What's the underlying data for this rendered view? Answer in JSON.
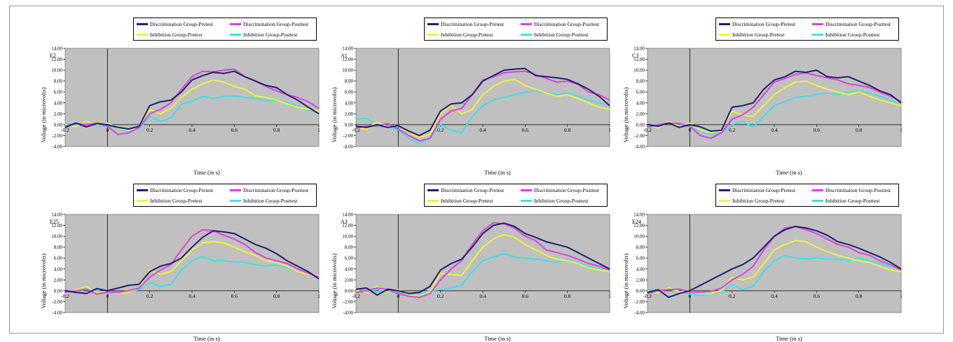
{
  "legend": [
    {
      "name": "Discrimination Group-Pretest",
      "color": "#1f1f6e"
    },
    {
      "name": "Discrimination Group-Posttest",
      "color": "#e040e0"
    },
    {
      "name": "Inhibition Group-Pretest",
      "color": "#f0f040"
    },
    {
      "name": "Inhibition Group-Posttest",
      "color": "#40e0e8"
    }
  ],
  "plot_bg": "#c0c0c0",
  "chart_data": [
    {
      "type": "line",
      "title": "E2",
      "xlabel": "Time (in s)",
      "ylabel": "Voltage (in microvolts)",
      "xlim": [
        -0.2,
        1
      ],
      "ylim": [
        -4,
        14
      ],
      "xticks": [
        "-0.2",
        "0",
        "0.2",
        "0.4",
        "0.6",
        "0.8",
        "1"
      ],
      "yticks": [
        "-4.00",
        "-2.00",
        "0.00",
        "2.00",
        "4.00",
        "6.00",
        "8.00",
        "10.00",
        "12.00",
        "14.00"
      ],
      "x": [
        -0.2,
        -0.15,
        -0.1,
        -0.05,
        0,
        0.05,
        0.1,
        0.15,
        0.2,
        0.25,
        0.3,
        0.35,
        0.4,
        0.45,
        0.5,
        0.55,
        0.6,
        0.65,
        0.7,
        0.75,
        0.8,
        0.85,
        0.9,
        0.95,
        1
      ],
      "series": [
        {
          "name": "Discrimination Group-Pretest",
          "values": [
            -0.5,
            0.3,
            -0.4,
            0.2,
            0,
            -0.5,
            -0.8,
            -0.3,
            3.5,
            4.2,
            4.5,
            6,
            8.2,
            9,
            9.6,
            9.4,
            9.8,
            8.8,
            8,
            7.2,
            6.8,
            5.5,
            4.5,
            3.2,
            2
          ]
        },
        {
          "name": "Discrimination Group-Posttest",
          "values": [
            -0.3,
            0.2,
            0,
            0.3,
            -0.3,
            -1.8,
            -1.5,
            -0.5,
            2,
            2.8,
            4,
            6.5,
            8.8,
            9.8,
            9.7,
            10,
            10.2,
            8.8,
            8,
            7,
            6.2,
            5.5,
            5,
            4.2,
            3
          ]
        },
        {
          "name": "Inhibition Group-Pretest",
          "values": [
            0,
            -0.4,
            0.6,
            0,
            0.3,
            -0.6,
            -1,
            -0.3,
            2.8,
            2,
            3,
            5,
            6.5,
            7.5,
            8.2,
            7.8,
            7,
            6.5,
            5.3,
            5,
            4.5,
            3.8,
            3.2,
            2.8,
            2.5
          ]
        },
        {
          "name": "Inhibition Group-Posttest",
          "values": [
            0.2,
            0,
            0.2,
            -0.2,
            -0.2,
            -0.6,
            -1.2,
            -0.8,
            1.5,
            0.6,
            1.2,
            3.8,
            4.3,
            5.2,
            4.8,
            5.2,
            5.3,
            5,
            4.8,
            4.4,
            4.5,
            4,
            3.5,
            2.6,
            2.2
          ]
        }
      ]
    },
    {
      "type": "line",
      "title": "A1",
      "xlabel": "Time (in s)",
      "ylabel": "Voltage (in microvolts)",
      "xlim": [
        -0.2,
        1
      ],
      "ylim": [
        -4,
        14
      ],
      "xticks": [
        "-0.2",
        "0",
        "0.2",
        "0.4",
        "0.6",
        "0.8",
        "1"
      ],
      "yticks": [
        "-4.00",
        "-2.00",
        "0.00",
        "2.00",
        "4.00",
        "6.00",
        "8.00",
        "10.00",
        "12.00",
        "14.00"
      ],
      "x": [
        -0.2,
        -0.15,
        -0.1,
        -0.05,
        0,
        0.05,
        0.1,
        0.15,
        0.2,
        0.25,
        0.3,
        0.35,
        0.4,
        0.45,
        0.5,
        0.55,
        0.6,
        0.65,
        0.7,
        0.75,
        0.8,
        0.85,
        0.9,
        0.95,
        1
      ],
      "series": [
        {
          "name": "Discrimination Group-Pretest",
          "values": [
            -0.3,
            -0.5,
            0,
            -0.5,
            -0.2,
            -1.2,
            -2,
            -1,
            2.5,
            3.8,
            4,
            5.5,
            8,
            9,
            10,
            10.2,
            10.3,
            9,
            8.8,
            8.6,
            8.3,
            7.5,
            6.5,
            5.2,
            3.5
          ]
        },
        {
          "name": "Discrimination Group-Posttest",
          "values": [
            -0.6,
            -0.3,
            -0.2,
            0.2,
            -0.8,
            -2,
            -3,
            -2.5,
            1,
            2.5,
            3,
            5.5,
            8.2,
            8.8,
            9.5,
            9.7,
            9.8,
            9.2,
            8.5,
            7.8,
            8,
            7.4,
            6,
            5.5,
            4.5
          ]
        },
        {
          "name": "Inhibition Group-Pretest",
          "values": [
            -0.5,
            -0.8,
            0.5,
            -0.5,
            -0.2,
            -1.5,
            -2.3,
            -1.8,
            2,
            3.5,
            2,
            2.8,
            5.5,
            7,
            8,
            8.3,
            7.2,
            6.5,
            5.8,
            5.2,
            5.5,
            4.8,
            4,
            3.2,
            2.8
          ]
        },
        {
          "name": "Inhibition Group-Posttest",
          "values": [
            1,
            1.2,
            -0.5,
            -0.3,
            -1,
            -2.5,
            -3.5,
            -2.5,
            0,
            -1,
            -1.5,
            1.5,
            3.5,
            4.5,
            5,
            5.5,
            6,
            6.2,
            5.8,
            5.5,
            5.8,
            5.2,
            4.5,
            4,
            3.5
          ]
        }
      ]
    },
    {
      "type": "line",
      "title": "C3",
      "xlabel": "Time (in s)",
      "ylabel": "Voltage (in microvolts)",
      "xlim": [
        -0.2,
        1
      ],
      "ylim": [
        -4,
        14
      ],
      "xticks": [
        "-0.2",
        "0",
        "0.2",
        "0.4",
        "0.6",
        "0.8",
        "1"
      ],
      "yticks": [
        "-4.00",
        "-2.00",
        "0.00",
        "2.00",
        "4.00",
        "6.00",
        "8.00",
        "10.00",
        "12.00",
        "14.00"
      ],
      "x": [
        -0.2,
        -0.15,
        -0.1,
        -0.05,
        0,
        0.05,
        0.1,
        0.15,
        0.2,
        0.25,
        0.3,
        0.35,
        0.4,
        0.45,
        0.5,
        0.55,
        0.6,
        0.65,
        0.7,
        0.75,
        0.8,
        0.85,
        0.9,
        0.95,
        1
      ],
      "series": [
        {
          "name": "Discrimination Group-Pretest",
          "values": [
            0,
            -0.3,
            0.3,
            -0.5,
            0,
            -0.4,
            -1.2,
            -1,
            3.2,
            3.5,
            4,
            6.5,
            8.2,
            8.8,
            9.8,
            9.6,
            10,
            8.8,
            8.6,
            8.8,
            8,
            7.2,
            6.2,
            5.5,
            4
          ]
        },
        {
          "name": "Discrimination Group-Posttest",
          "values": [
            -0.5,
            0,
            0.3,
            0.2,
            -0.3,
            -2,
            -2.5,
            -1.5,
            1,
            1.8,
            3.2,
            5.5,
            7.8,
            8.5,
            9.2,
            9.5,
            9,
            8.6,
            8.2,
            7.5,
            7.2,
            6.8,
            6,
            5.2,
            4.2
          ]
        },
        {
          "name": "Inhibition Group-Pretest",
          "values": [
            0,
            -0.6,
            0.5,
            -0.2,
            0.3,
            -1,
            -1.5,
            -0.8,
            2.5,
            1.8,
            1.5,
            3.5,
            5.5,
            6.8,
            7.8,
            8,
            7.2,
            6.5,
            6,
            5.5,
            6,
            5.2,
            4.5,
            4,
            3.5
          ]
        },
        {
          "name": "Inhibition Group-Posttest",
          "values": [
            0.2,
            0,
            0.3,
            -0.2,
            -0.4,
            -1.2,
            -1.8,
            -1.5,
            0,
            0.6,
            -0.5,
            1.5,
            3.5,
            4.2,
            5,
            5.2,
            5.5,
            5.8,
            5.5,
            6,
            6.2,
            5.8,
            5.2,
            4.5,
            3.5
          ]
        }
      ]
    },
    {
      "type": "line",
      "title": "E25",
      "xlabel": "Time (in s)",
      "ylabel": "Voltage (in microvolts)",
      "xlim": [
        -0.2,
        1
      ],
      "ylim": [
        -4,
        14
      ],
      "xticks": [
        "-0.2",
        "0",
        "0.2",
        "0.4",
        "0.6",
        "0.8",
        "1"
      ],
      "yticks": [
        "-4.00",
        "-2.00",
        "0.00",
        "2.00",
        "4.00",
        "6.00",
        "8.00",
        "10.00",
        "12.00",
        "14.00"
      ],
      "x": [
        -0.2,
        -0.15,
        -0.1,
        -0.05,
        0,
        0.05,
        0.1,
        0.15,
        0.2,
        0.25,
        0.3,
        0.35,
        0.4,
        0.45,
        0.5,
        0.55,
        0.6,
        0.65,
        0.7,
        0.75,
        0.8,
        0.85,
        0.9,
        0.95,
        1
      ],
      "series": [
        {
          "name": "Discrimination Group-Pretest",
          "values": [
            0,
            -0.3,
            -0.5,
            0.4,
            0,
            0.5,
            1,
            1.2,
            3.5,
            4.5,
            5,
            6,
            8,
            9.8,
            11,
            10.8,
            10.5,
            9.5,
            8.5,
            7.8,
            6.8,
            5.5,
            4.5,
            3.5,
            2.2
          ]
        },
        {
          "name": "Discrimination Group-Posttest",
          "values": [
            -0.3,
            0,
            0.3,
            -0.6,
            -0.2,
            -0.3,
            0,
            0.5,
            2.5,
            3.8,
            4.8,
            7.5,
            10,
            11.2,
            11,
            10.2,
            9.5,
            8.5,
            7,
            6,
            5.5,
            5,
            4,
            3.2,
            2.5
          ]
        },
        {
          "name": "Inhibition Group-Pretest",
          "values": [
            -0.6,
            0.2,
            0.8,
            -0.4,
            0,
            -0.5,
            -0.3,
            0.5,
            3.8,
            3,
            3.5,
            5.5,
            7.5,
            8.8,
            9,
            8.8,
            8,
            7.2,
            6.5,
            5.5,
            5.2,
            4.5,
            3.5,
            3,
            2.8
          ]
        },
        {
          "name": "Inhibition Group-Posttest",
          "values": [
            0.2,
            -0.3,
            0.3,
            0,
            -0.5,
            -0.4,
            -0.2,
            0.2,
            1.5,
            0.8,
            1.2,
            3.8,
            5.5,
            6.3,
            5.5,
            5.5,
            5.3,
            5.2,
            4.8,
            4.5,
            4.8,
            4.2,
            3.5,
            3,
            2.8
          ]
        }
      ]
    },
    {
      "type": "line",
      "title": "A3",
      "xlabel": "Time (in s)",
      "ylabel": "Voltage (in microvolts)",
      "xlim": [
        -0.2,
        1
      ],
      "ylim": [
        -4,
        14
      ],
      "xticks": [
        "-0.2",
        "0",
        "0.2",
        "0.4",
        "0.6",
        "0.8",
        "1"
      ],
      "yticks": [
        "-4.00",
        "-2.00",
        "0.00",
        "2.00",
        "4.00",
        "6.00",
        "8.00",
        "10.00",
        "12.00",
        "14.00"
      ],
      "x": [
        -0.2,
        -0.15,
        -0.1,
        -0.05,
        0,
        0.05,
        0.1,
        0.15,
        0.2,
        0.25,
        0.3,
        0.35,
        0.4,
        0.45,
        0.5,
        0.55,
        0.6,
        0.65,
        0.7,
        0.75,
        0.8,
        0.85,
        0.9,
        0.95,
        1
      ],
      "series": [
        {
          "name": "Discrimination Group-Pretest",
          "values": [
            0.3,
            0.5,
            -0.8,
            0.3,
            0,
            -0.5,
            -0.3,
            0.8,
            3.8,
            5,
            5.8,
            8,
            10.5,
            12,
            12.4,
            11.8,
            10.5,
            9.8,
            9,
            8.5,
            8,
            7,
            6,
            5,
            4
          ]
        },
        {
          "name": "Discrimination Group-Posttest",
          "values": [
            -0.3,
            0,
            0.5,
            0.2,
            -0.5,
            -1,
            -1.2,
            -0.5,
            2,
            4,
            5.5,
            8.5,
            11,
            12.5,
            12.3,
            11.5,
            10,
            9.2,
            7.5,
            7,
            6.5,
            5.8,
            5,
            4.5,
            3.8
          ]
        },
        {
          "name": "Inhibition Group-Pretest",
          "values": [
            0,
            -0.3,
            0.8,
            -0.3,
            0.2,
            -0.8,
            -1,
            -0.2,
            3.2,
            3,
            2.8,
            5.5,
            8,
            9.5,
            10.3,
            9.8,
            8.5,
            7.5,
            6.5,
            5.8,
            5.5,
            5,
            4.2,
            3.8,
            3.5
          ]
        },
        {
          "name": "Inhibition Group-Posttest",
          "values": [
            0.5,
            -0.2,
            0.2,
            -0.3,
            -0.2,
            -0.6,
            -0.5,
            0,
            0.2,
            0.5,
            1,
            3.5,
            5.5,
            6.2,
            6.8,
            6.2,
            6,
            5.8,
            5.5,
            5.2,
            5.8,
            5.2,
            4.5,
            4,
            3.5
          ]
        }
      ]
    },
    {
      "type": "line",
      "title": "E24",
      "xlabel": "Time (in s)",
      "ylabel": "Voltage (in microvolts)",
      "xlim": [
        -0.2,
        1
      ],
      "ylim": [
        -4,
        14
      ],
      "xticks": [
        "-0.2",
        "0",
        "0.2",
        "0.4",
        "0.6",
        "0.8",
        "1"
      ],
      "yticks": [
        "-4.00",
        "-2.00",
        "0.00",
        "2.00",
        "4.00",
        "6.00",
        "8.00",
        "10.00",
        "12.00",
        "14.00"
      ],
      "x": [
        -0.2,
        -0.15,
        -0.1,
        -0.05,
        0,
        0.05,
        0.1,
        0.15,
        0.2,
        0.25,
        0.3,
        0.35,
        0.4,
        0.45,
        0.5,
        0.55,
        0.6,
        0.65,
        0.7,
        0.75,
        0.8,
        0.85,
        0.9,
        0.95,
        1
      ],
      "series": [
        {
          "name": "Discrimination Group-Pretest",
          "values": [
            -0.3,
            0.2,
            -1.2,
            -0.5,
            0,
            1,
            2,
            3,
            4,
            4.8,
            6,
            8,
            10,
            11.2,
            11.8,
            11.5,
            11,
            10.2,
            9,
            8.5,
            7.8,
            7,
            6.2,
            5.2,
            4
          ]
        },
        {
          "name": "Discrimination Group-Posttest",
          "values": [
            -0.5,
            0,
            0.2,
            0.3,
            -0.2,
            -0.3,
            -0.1,
            0.5,
            2,
            3,
            4.5,
            7.5,
            10,
            11.5,
            11.8,
            11.2,
            10.5,
            9.5,
            8.5,
            8,
            7,
            6.5,
            5.5,
            4.8,
            3.8
          ]
        },
        {
          "name": "Inhibition Group-Pretest",
          "values": [
            0,
            -0.4,
            0.6,
            -0.2,
            0,
            -0.5,
            -0.5,
            0,
            2.5,
            2,
            2.5,
            5,
            7.5,
            8.5,
            9.2,
            9,
            8,
            7.2,
            6.5,
            6,
            5.5,
            5.2,
            4.5,
            3.8,
            3.5
          ]
        },
        {
          "name": "Inhibition Group-Posttest",
          "values": [
            0.2,
            0,
            0.3,
            -0.2,
            -0.6,
            -0.8,
            -0.5,
            -0.3,
            1.2,
            0.2,
            0.8,
            3.5,
            5.5,
            6.5,
            6,
            5.8,
            6,
            5.8,
            5.8,
            5.5,
            6,
            5.5,
            5,
            4.5,
            4
          ]
        }
      ]
    }
  ]
}
